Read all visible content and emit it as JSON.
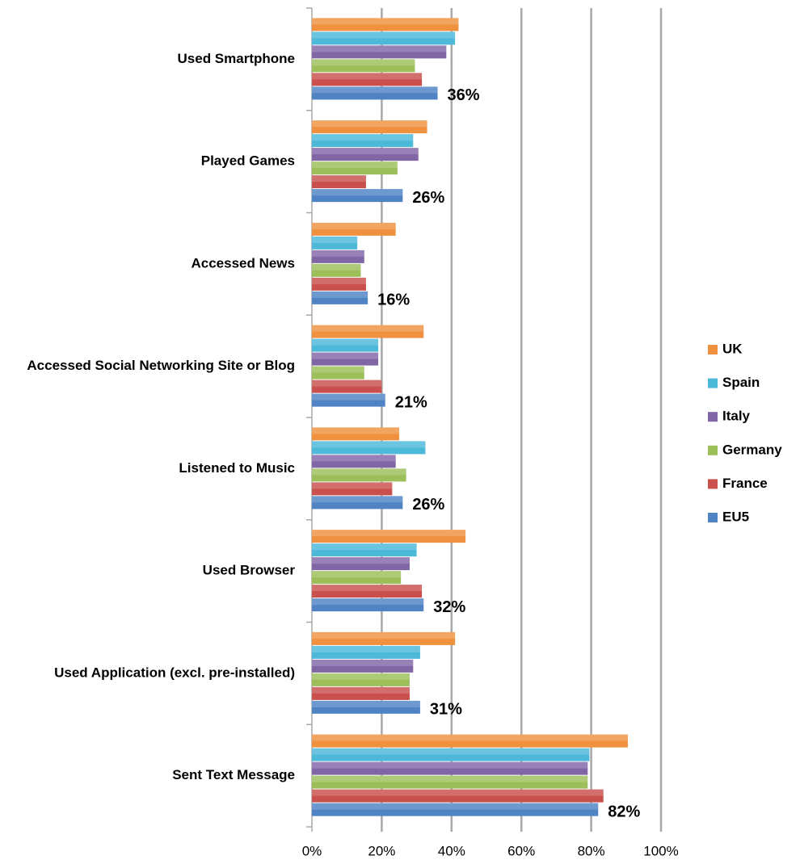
{
  "chart_data": {
    "type": "bar",
    "orientation": "horizontal",
    "categories": [
      "Used Smartphone",
      "Played Games",
      "Accessed News",
      "Accessed Social Networking Site or Blog",
      "Listened to Music",
      "Used Browser",
      "Used Application (excl. pre-installed)",
      "Sent Text Message"
    ],
    "series": [
      {
        "name": "UK",
        "color": "#f0913f",
        "values": [
          42,
          33,
          24,
          32,
          25,
          44,
          41,
          90.5
        ]
      },
      {
        "name": "Spain",
        "color": "#4cb9d9",
        "values": [
          41,
          29,
          13,
          19,
          32.5,
          30,
          31,
          79.5
        ]
      },
      {
        "name": "Italy",
        "color": "#8166a6",
        "values": [
          38.5,
          30.5,
          15,
          19,
          24,
          28,
          29,
          79
        ]
      },
      {
        "name": "Germany",
        "color": "#9cbf5a",
        "values": [
          29.5,
          24.5,
          14,
          15,
          27,
          25.5,
          28,
          79
        ]
      },
      {
        "name": "France",
        "color": "#c9504d",
        "values": [
          31.5,
          15.5,
          15.5,
          20,
          23,
          31.5,
          28,
          83.5
        ]
      },
      {
        "name": "EU5",
        "color": "#4f83c4",
        "values": [
          36,
          26,
          16,
          21,
          26,
          32,
          31,
          82
        ],
        "value_labels": [
          "36%",
          "26%",
          "16%",
          "21%",
          "26%",
          "32%",
          "31%",
          "82%"
        ]
      }
    ],
    "xlim": [
      0,
      100
    ],
    "xticks": [
      {
        "value": 0,
        "label": "0%"
      },
      {
        "value": 20,
        "label": "20%"
      },
      {
        "value": 40,
        "label": "40%"
      },
      {
        "value": 60,
        "label": "60%"
      },
      {
        "value": 80,
        "label": "80%"
      },
      {
        "value": 100,
        "label": "100%"
      }
    ],
    "grid": true,
    "legend": "right"
  }
}
